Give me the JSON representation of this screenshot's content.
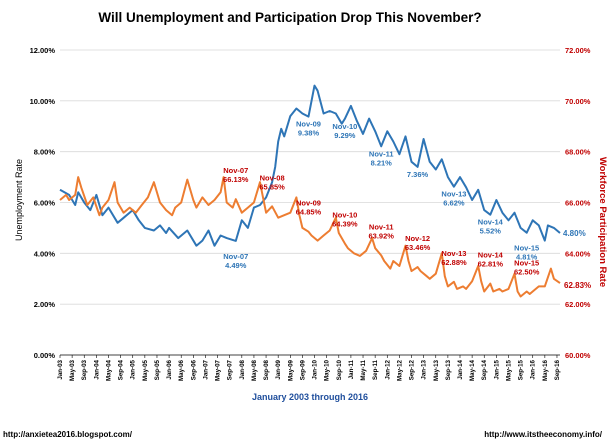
{
  "chart_data": {
    "type": "line",
    "title": "Will Unemployment and Participation Drop This November?",
    "xlabel": "January 2003 through 2016",
    "ylabel_left": "Unemployment Rate",
    "ylabel_right": "Workforce Participation Rate",
    "ylim_left": [
      0,
      12
    ],
    "ylim_right": [
      60,
      72
    ],
    "yticks_left": [
      "0.00%",
      "2.00%",
      "4.00%",
      "6.00%",
      "8.00%",
      "10.00%",
      "12.00%"
    ],
    "yticks_right": [
      "60.00%",
      "62.00%",
      "64.00%",
      "66.00%",
      "68.00%",
      "70.00%",
      "72.00%"
    ],
    "x_ticks": [
      "Jan-03",
      "May-03",
      "Sep-03",
      "Jan-04",
      "May-04",
      "Sep-04",
      "Jan-05",
      "May-05",
      "Sep-05",
      "Jan-06",
      "May-06",
      "Sep-06",
      "Jan-07",
      "May-07",
      "Sep-07",
      "Jan-08",
      "May-08",
      "Sep-08",
      "Jan-09",
      "May-09",
      "Sep-09",
      "Jan-10",
      "May-10",
      "Sep-10",
      "Jan-11",
      "May-11",
      "Sep-11",
      "Jan-12",
      "May-12",
      "Sep-12",
      "Jan-13",
      "May-13",
      "Sep-13",
      "Jan-14",
      "May-14",
      "Sep-14",
      "Jan-15",
      "May-15",
      "Sep-15",
      "Jan-16",
      "May-16",
      "Sep-16"
    ],
    "grid": true,
    "series": [
      {
        "name": "Unemployment Rate",
        "axis": "left",
        "color": "#2e75b6",
        "points": [
          [
            "Jan-03",
            6.5
          ],
          [
            "Apr-03",
            6.3
          ],
          [
            "Jun-03",
            5.9
          ],
          [
            "Jul-03",
            6.4
          ],
          [
            "Sep-03",
            6.0
          ],
          [
            "Nov-03",
            5.7
          ],
          [
            "Jan-04",
            6.3
          ],
          [
            "Mar-04",
            5.5
          ],
          [
            "May-04",
            5.8
          ],
          [
            "Aug-04",
            5.2
          ],
          [
            "Oct-04",
            5.4
          ],
          [
            "Jan-05",
            5.7
          ],
          [
            "Mar-05",
            5.3
          ],
          [
            "May-05",
            5.0
          ],
          [
            "Aug-05",
            4.9
          ],
          [
            "Oct-05",
            5.1
          ],
          [
            "Dec-05",
            4.8
          ],
          [
            "Jan-06",
            5.0
          ],
          [
            "Apr-06",
            4.6
          ],
          [
            "Jul-06",
            4.9
          ],
          [
            "Oct-06",
            4.3
          ],
          [
            "Dec-06",
            4.5
          ],
          [
            "Feb-07",
            4.9
          ],
          [
            "Apr-07",
            4.3
          ],
          [
            "Jun-07",
            4.7
          ],
          [
            "Aug-07",
            4.6
          ],
          [
            "Nov-07",
            4.49
          ],
          [
            "Jan-08",
            5.3
          ],
          [
            "Mar-08",
            5.0
          ],
          [
            "May-08",
            5.8
          ],
          [
            "Jul-08",
            5.9
          ],
          [
            "Sep-08",
            6.2
          ],
          [
            "Nov-08",
            6.8
          ],
          [
            "Dec-08",
            7.4
          ],
          [
            "Jan-09",
            8.4
          ],
          [
            "Feb-09",
            8.9
          ],
          [
            "Mar-09",
            8.6
          ],
          [
            "May-09",
            9.4
          ],
          [
            "Jul-09",
            9.7
          ],
          [
            "Sep-09",
            9.5
          ],
          [
            "Nov-09",
            9.38
          ],
          [
            "Jan-10",
            10.6
          ],
          [
            "Feb-10",
            10.4
          ],
          [
            "Apr-10",
            9.5
          ],
          [
            "Jun-10",
            9.6
          ],
          [
            "Aug-10",
            9.5
          ],
          [
            "Oct-10",
            9.1
          ],
          [
            "Nov-10",
            9.29
          ],
          [
            "Jan-11",
            9.8
          ],
          [
            "Mar-11",
            9.2
          ],
          [
            "May-11",
            8.7
          ],
          [
            "Jul-11",
            9.3
          ],
          [
            "Sep-11",
            8.8
          ],
          [
            "Nov-11",
            8.21
          ],
          [
            "Jan-12",
            8.8
          ],
          [
            "Mar-12",
            8.4
          ],
          [
            "May-12",
            7.9
          ],
          [
            "Jul-12",
            8.6
          ],
          [
            "Sep-12",
            7.6
          ],
          [
            "Nov-12",
            7.4
          ],
          [
            "Jan-13",
            8.5
          ],
          [
            "Mar-13",
            7.6
          ],
          [
            "May-13",
            7.3
          ],
          [
            "Jul-13",
            7.7
          ],
          [
            "Sep-13",
            7.0
          ],
          [
            "Nov-13",
            6.62
          ],
          [
            "Jan-14",
            7.0
          ],
          [
            "Mar-14",
            6.6
          ],
          [
            "May-14",
            6.1
          ],
          [
            "Jul-14",
            6.5
          ],
          [
            "Sep-14",
            5.7
          ],
          [
            "Nov-14",
            5.52
          ],
          [
            "Jan-15",
            6.1
          ],
          [
            "Mar-15",
            5.6
          ],
          [
            "May-15",
            5.3
          ],
          [
            "Jul-15",
            5.6
          ],
          [
            "Sep-15",
            5.0
          ],
          [
            "Nov-15",
            4.81
          ],
          [
            "Jan-16",
            5.3
          ],
          [
            "Mar-16",
            5.1
          ],
          [
            "May-16",
            4.5
          ],
          [
            "Jun-16",
            5.1
          ],
          [
            "Aug-16",
            5.0
          ],
          [
            "Oct-16",
            4.8
          ]
        ]
      },
      {
        "name": "Workforce Participation Rate",
        "axis": "right",
        "color": "#ed7d31",
        "points": [
          [
            "Jan-03",
            66.1
          ],
          [
            "Mar-03",
            66.3
          ],
          [
            "Apr-03",
            66.1
          ],
          [
            "Jun-03",
            66.3
          ],
          [
            "Jul-03",
            67.0
          ],
          [
            "Aug-03",
            66.6
          ],
          [
            "Oct-03",
            65.9
          ],
          [
            "Dec-03",
            66.2
          ],
          [
            "Feb-04",
            65.5
          ],
          [
            "Mar-04",
            65.8
          ],
          [
            "May-04",
            66.1
          ],
          [
            "Jul-04",
            66.8
          ],
          [
            "Aug-04",
            66.0
          ],
          [
            "Oct-04",
            65.6
          ],
          [
            "Dec-04",
            65.8
          ],
          [
            "Feb-05",
            65.6
          ],
          [
            "Apr-05",
            65.9
          ],
          [
            "Jun-05",
            66.2
          ],
          [
            "Aug-05",
            66.8
          ],
          [
            "Oct-05",
            66.0
          ],
          [
            "Dec-05",
            65.7
          ],
          [
            "Feb-06",
            65.5
          ],
          [
            "Mar-06",
            65.8
          ],
          [
            "May-06",
            66.0
          ],
          [
            "Jul-06",
            66.9
          ],
          [
            "Sep-06",
            66.1
          ],
          [
            "Oct-06",
            65.8
          ],
          [
            "Dec-06",
            66.2
          ],
          [
            "Feb-07",
            65.9
          ],
          [
            "Apr-07",
            66.1
          ],
          [
            "Jun-07",
            66.4
          ],
          [
            "Jul-07",
            67.0
          ],
          [
            "Aug-07",
            66.0
          ],
          [
            "Oct-07",
            65.8
          ],
          [
            "Nov-07",
            66.13
          ],
          [
            "Jan-08",
            65.6
          ],
          [
            "Mar-08",
            65.8
          ],
          [
            "May-08",
            66.0
          ],
          [
            "Jul-08",
            66.8
          ],
          [
            "Aug-08",
            66.2
          ],
          [
            "Sep-08",
            65.6
          ],
          [
            "Nov-08",
            65.85
          ],
          [
            "Jan-09",
            65.4
          ],
          [
            "Mar-09",
            65.5
          ],
          [
            "May-09",
            65.6
          ],
          [
            "Jul-09",
            66.2
          ],
          [
            "Aug-09",
            65.5
          ],
          [
            "Sep-09",
            65.0
          ],
          [
            "Nov-09",
            64.85
          ],
          [
            "Dec-09",
            64.7
          ],
          [
            "Feb-10",
            64.5
          ],
          [
            "Apr-10",
            64.7
          ],
          [
            "Jun-10",
            64.9
          ],
          [
            "Aug-10",
            65.4
          ],
          [
            "Sep-10",
            64.8
          ],
          [
            "Nov-10",
            64.39
          ],
          [
            "Dec-10",
            64.2
          ],
          [
            "Feb-11",
            64.0
          ],
          [
            "Apr-11",
            63.9
          ],
          [
            "Jun-11",
            64.1
          ],
          [
            "Aug-11",
            64.6
          ],
          [
            "Sep-11",
            64.2
          ],
          [
            "Nov-11",
            63.92
          ],
          [
            "Dec-11",
            63.7
          ],
          [
            "Feb-12",
            63.4
          ],
          [
            "Mar-12",
            63.7
          ],
          [
            "May-12",
            63.5
          ],
          [
            "Jul-12",
            64.3
          ],
          [
            "Aug-12",
            63.7
          ],
          [
            "Sep-12",
            63.3
          ],
          [
            "Nov-12",
            63.46
          ],
          [
            "Dec-12",
            63.3
          ],
          [
            "Feb-13",
            63.1
          ],
          [
            "Mar-13",
            63.0
          ],
          [
            "May-13",
            63.2
          ],
          [
            "Jul-13",
            64.0
          ],
          [
            "Aug-13",
            63.1
          ],
          [
            "Sep-13",
            62.7
          ],
          [
            "Nov-13",
            62.88
          ],
          [
            "Dec-13",
            62.6
          ],
          [
            "Feb-14",
            62.7
          ],
          [
            "Mar-14",
            62.6
          ],
          [
            "May-14",
            62.9
          ],
          [
            "Jul-14",
            63.5
          ],
          [
            "Aug-14",
            62.9
          ],
          [
            "Sep-14",
            62.5
          ],
          [
            "Nov-14",
            62.81
          ],
          [
            "Dec-14",
            62.5
          ],
          [
            "Feb-15",
            62.6
          ],
          [
            "Mar-15",
            62.5
          ],
          [
            "May-15",
            62.6
          ],
          [
            "Jul-15",
            63.2
          ],
          [
            "Aug-15",
            62.5
          ],
          [
            "Sep-15",
            62.3
          ],
          [
            "Nov-15",
            62.5
          ],
          [
            "Dec-15",
            62.4
          ],
          [
            "Feb-16",
            62.6
          ],
          [
            "Mar-16",
            62.7
          ],
          [
            "May-16",
            62.7
          ],
          [
            "Jul-16",
            63.4
          ],
          [
            "Aug-16",
            63.0
          ],
          [
            "Oct-16",
            62.83
          ]
        ]
      }
    ],
    "annotations_blue": [
      {
        "label": "Nov-07",
        "value": "4.49%",
        "at": "Nov-07"
      },
      {
        "label": "Nov-09",
        "value": "9.38%",
        "at": "Nov-09"
      },
      {
        "label": "Nov-10",
        "value": "9.29%",
        "at": "Nov-10"
      },
      {
        "label": "Nov-11",
        "value": "8.21%",
        "at": "Nov-11"
      },
      {
        "label": "",
        "value": "7.36%",
        "at": "Nov-12"
      },
      {
        "label": "Nov-13",
        "value": "6.62%",
        "at": "Nov-13"
      },
      {
        "label": "Nov-14",
        "value": "5.52%",
        "at": "Nov-14"
      },
      {
        "label": "Nov-15",
        "value": "4.81%",
        "at": "Nov-15"
      }
    ],
    "annotations_red": [
      {
        "label": "Nov-07",
        "value": "66.13%",
        "at": "Nov-07"
      },
      {
        "label": "Nov-08",
        "value": "65.85%",
        "at": "Nov-08"
      },
      {
        "label": "Nov-09",
        "value": "64.85%",
        "at": "Nov-09"
      },
      {
        "label": "Nov-10",
        "value": "64.39%",
        "at": "Nov-10"
      },
      {
        "label": "Nov-11",
        "value": "63.92%",
        "at": "Nov-11"
      },
      {
        "label": "Nov-12",
        "value": "63.46%",
        "at": "Nov-12"
      },
      {
        "label": "Nov-13",
        "value": "62.88%",
        "at": "Nov-13"
      },
      {
        "label": "Nov-14",
        "value": "62.81%",
        "at": "Nov-14"
      },
      {
        "label": "Nov-15",
        "value": "62.50%",
        "at": "Nov-15"
      }
    ],
    "end_labels": {
      "unemployment": "4.80%",
      "participation": "62.83%"
    }
  },
  "footer": {
    "left": "http://anxietea2016.blogspot.com/",
    "right": "http://www.itstheeconomy.info/"
  }
}
